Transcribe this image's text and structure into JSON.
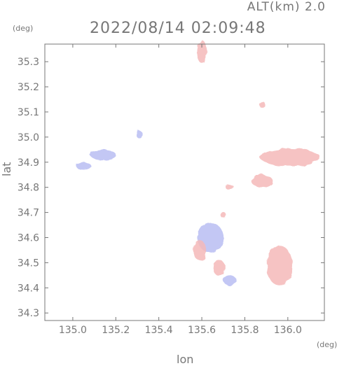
{
  "header": {
    "altitude_label": "ALT(km) 2.0",
    "timestamp": "2022/08/14 02:09:48"
  },
  "chart_data": {
    "type": "heatmap",
    "title": "2022/08/14 02:09:48",
    "subtitle": "ALT(km) 2.0",
    "xlabel": "lon",
    "ylabel": "lat",
    "x_unit": "(deg)",
    "y_unit": "(deg)",
    "xlim": [
      134.87,
      136.17
    ],
    "ylim": [
      34.27,
      35.37
    ],
    "x_ticks": [
      135.0,
      135.2,
      135.4,
      135.6,
      135.8,
      136.0
    ],
    "x_tick_labels": [
      "135.0",
      "135.2",
      "135.4",
      "135.6",
      "135.8",
      "136.0"
    ],
    "y_ticks": [
      34.3,
      34.4,
      34.5,
      34.6,
      34.7,
      34.8,
      34.9,
      35.0,
      35.1,
      35.2,
      35.3
    ],
    "y_tick_labels": [
      "34.3",
      "34.4",
      "34.5",
      "34.6",
      "34.7",
      "34.8",
      "34.9",
      "35.0",
      "35.1",
      "35.2",
      "35.3"
    ],
    "grid": false,
    "colors": {
      "positive": "#f4b9b9",
      "negative": "#b9bdf2",
      "axis": "#777777"
    },
    "regions": [
      {
        "lon": 135.6,
        "lat": 35.34,
        "rx": 0.025,
        "ry": 0.045,
        "sign": "positive"
      },
      {
        "lon": 135.14,
        "lat": 34.93,
        "rx": 0.06,
        "ry": 0.02,
        "sign": "negative"
      },
      {
        "lon": 135.05,
        "lat": 34.885,
        "rx": 0.035,
        "ry": 0.015,
        "sign": "negative"
      },
      {
        "lon": 135.31,
        "lat": 35.01,
        "rx": 0.015,
        "ry": 0.015,
        "sign": "negative"
      },
      {
        "lon": 136.01,
        "lat": 34.92,
        "rx": 0.14,
        "ry": 0.035,
        "sign": "positive"
      },
      {
        "lon": 135.88,
        "lat": 34.825,
        "rx": 0.05,
        "ry": 0.025,
        "sign": "positive"
      },
      {
        "lon": 135.73,
        "lat": 34.8,
        "rx": 0.02,
        "ry": 0.01,
        "sign": "positive"
      },
      {
        "lon": 135.64,
        "lat": 34.6,
        "rx": 0.06,
        "ry": 0.06,
        "sign": "negative"
      },
      {
        "lon": 135.59,
        "lat": 34.55,
        "rx": 0.03,
        "ry": 0.04,
        "sign": "positive"
      },
      {
        "lon": 135.68,
        "lat": 34.48,
        "rx": 0.03,
        "ry": 0.03,
        "sign": "positive"
      },
      {
        "lon": 135.73,
        "lat": 34.43,
        "rx": 0.03,
        "ry": 0.02,
        "sign": "negative"
      },
      {
        "lon": 135.96,
        "lat": 34.49,
        "rx": 0.06,
        "ry": 0.08,
        "sign": "positive"
      },
      {
        "lon": 135.88,
        "lat": 35.13,
        "rx": 0.015,
        "ry": 0.012,
        "sign": "positive"
      },
      {
        "lon": 135.7,
        "lat": 34.69,
        "rx": 0.012,
        "ry": 0.012,
        "sign": "positive"
      }
    ]
  }
}
